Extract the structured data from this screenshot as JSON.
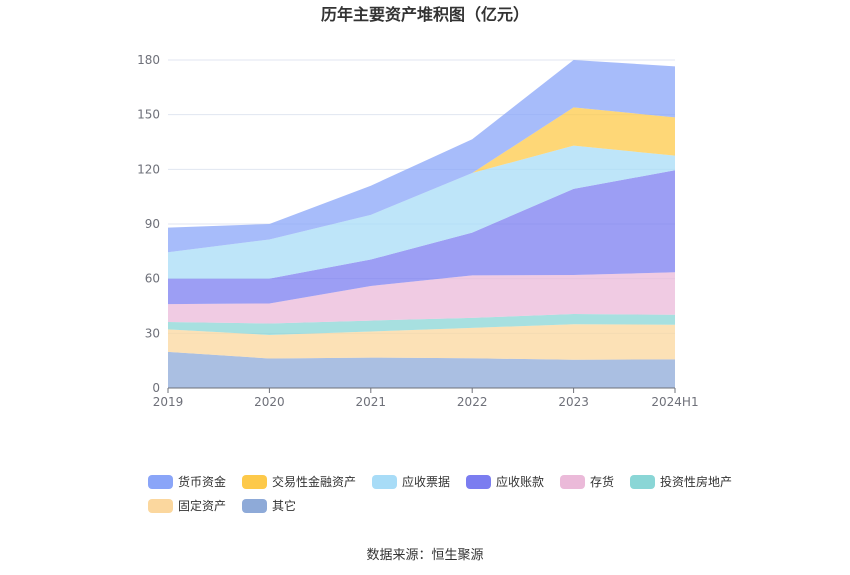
{
  "chart_data": {
    "type": "area",
    "stacked": true,
    "title": "历年主要资产堆积图（亿元）",
    "categories": [
      "2019",
      "2020",
      "2021",
      "2022",
      "2023",
      "2024H1"
    ],
    "ylim": [
      0,
      180
    ],
    "yticks": [
      "0",
      "30",
      "60",
      "90",
      "120",
      "150",
      "180"
    ],
    "grid": true,
    "legend_position": "bottom",
    "series": [
      {
        "name": "其它",
        "color": "#8eaad8",
        "values": [
          19.8,
          16.2,
          16.7,
          16.3,
          15.5,
          15.7
        ]
      },
      {
        "name": "固定资产",
        "color": "#fbd79e",
        "values": [
          12.4,
          12.9,
          14.3,
          16.7,
          19.5,
          19.0
        ]
      },
      {
        "name": "投资性房地产",
        "color": "#8ad6d6",
        "values": [
          4.0,
          6.3,
          6.0,
          5.5,
          5.6,
          5.5
        ]
      },
      {
        "name": "存货",
        "color": "#ebbad9",
        "values": [
          9.8,
          11.0,
          19.0,
          23.3,
          21.4,
          23.3
        ]
      },
      {
        "name": "应收账款",
        "color": "#7b7df0",
        "values": [
          14.0,
          13.6,
          14.5,
          23.5,
          47.3,
          56.0
        ]
      },
      {
        "name": "应收票据",
        "color": "#a8dcf7",
        "values": [
          14.5,
          21.5,
          24.5,
          32.7,
          23.7,
          8.0
        ]
      },
      {
        "name": "交易性金融资产",
        "color": "#fdc94a",
        "values": [
          0.0,
          0.0,
          0.0,
          0.0,
          21.0,
          21.0
        ]
      },
      {
        "name": "货币资金",
        "color": "#8aa5f8",
        "values": [
          13.5,
          8.5,
          16.0,
          18.5,
          26.0,
          28.0
        ]
      }
    ],
    "legend_order": [
      "货币资金",
      "交易性金融资产",
      "应收票据",
      "应收账款",
      "存货",
      "投资性房地产",
      "固定资产",
      "其它"
    ],
    "source": "数据来源：恒生聚源"
  }
}
